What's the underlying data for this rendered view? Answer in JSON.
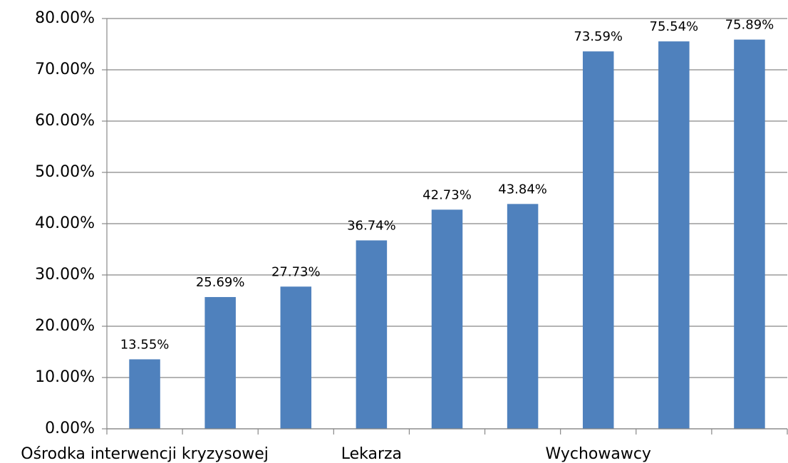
{
  "chart_data": {
    "type": "bar",
    "categories": [
      "Ośrodka interwencji kryzysowej",
      null,
      null,
      "Lekarza",
      null,
      null,
      "Wychowawcy",
      null,
      null
    ],
    "values": [
      13.55,
      25.69,
      27.73,
      36.74,
      42.73,
      43.84,
      73.59,
      75.54,
      75.89
    ],
    "value_labels": [
      "13.55%",
      "25.69%",
      "27.73%",
      "36.74%",
      "42.73%",
      "43.84%",
      "73.59%",
      "75.54%",
      "75.89%"
    ],
    "color": "#4f81bd",
    "ylim": [
      0,
      80
    ],
    "yticks": [
      {
        "value": 0,
        "label": "0.00%"
      },
      {
        "value": 10,
        "label": "10.00%"
      },
      {
        "value": 20,
        "label": "20.00%"
      },
      {
        "value": 30,
        "label": "30.00%"
      },
      {
        "value": 40,
        "label": "40.00%"
      },
      {
        "value": 50,
        "label": "50.00%"
      },
      {
        "value": 60,
        "label": "60.00%"
      },
      {
        "value": 70,
        "label": "70.00%"
      },
      {
        "value": 80,
        "label": "80.00%"
      }
    ],
    "grid": true
  }
}
